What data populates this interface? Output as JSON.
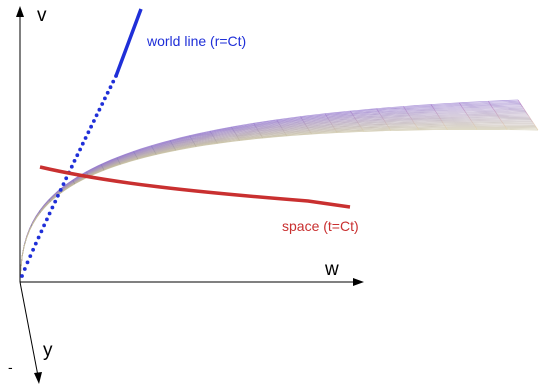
{
  "axes": {
    "v_label": "v",
    "w_label": "w",
    "y_label": "y",
    "minus_mark": "-"
  },
  "curves": {
    "world_line": {
      "label": "world line (r=Ct)",
      "color": "#1f2fd8"
    },
    "space": {
      "label": "space (t=Ct)",
      "color": "#c93030"
    }
  },
  "surface": {
    "grid_rows": 26,
    "grid_cols": 26,
    "corner_colors": {
      "origin": "#6e6e6e",
      "top": "#5c6ee0",
      "right": "#f2eaa8",
      "mid": "#b070c8"
    }
  }
}
